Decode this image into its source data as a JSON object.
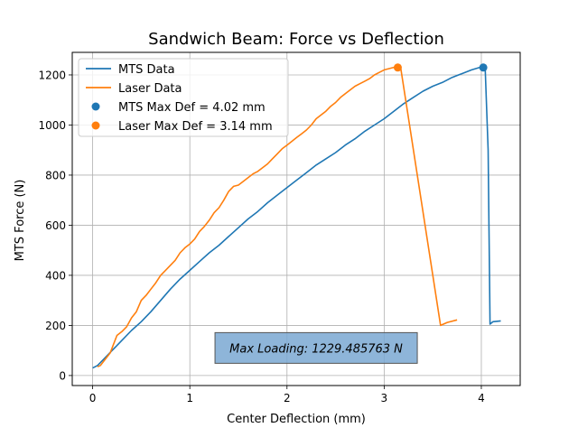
{
  "chart_data": {
    "type": "line",
    "title": "Sandwich Beam: Force vs Deflection",
    "xlabel": "Center Deflection (mm)",
    "ylabel": "MTS Force (N)",
    "xlim": [
      -0.21,
      4.4
    ],
    "ylim": [
      -40,
      1290
    ],
    "xticks": [
      0,
      1,
      2,
      3,
      4
    ],
    "xtick_labels": [
      "0",
      "1",
      "2",
      "3",
      "4"
    ],
    "yticks": [
      0,
      200,
      400,
      600,
      800,
      1000,
      1200
    ],
    "ytick_labels": [
      "0",
      "200",
      "400",
      "600",
      "800",
      "1000",
      "1200"
    ],
    "grid": true,
    "legend_position": "top-left",
    "series": [
      {
        "name": "MTS Data",
        "color": "#1f77b4",
        "x": [
          0.0,
          0.05,
          0.1,
          0.2,
          0.3,
          0.4,
          0.5,
          0.6,
          0.7,
          0.8,
          0.9,
          1.0,
          1.1,
          1.2,
          1.3,
          1.4,
          1.5,
          1.6,
          1.7,
          1.8,
          1.9,
          2.0,
          2.1,
          2.2,
          2.3,
          2.4,
          2.5,
          2.6,
          2.7,
          2.8,
          2.9,
          3.0,
          3.1,
          3.2,
          3.3,
          3.4,
          3.5,
          3.6,
          3.7,
          3.8,
          3.9,
          4.0,
          4.02,
          4.04,
          4.07,
          4.09,
          4.12,
          4.2
        ],
        "y": [
          30,
          40,
          60,
          100,
          140,
          180,
          215,
          255,
          300,
          345,
          385,
          420,
          455,
          490,
          520,
          555,
          590,
          625,
          655,
          690,
          720,
          750,
          780,
          810,
          840,
          865,
          890,
          920,
          945,
          975,
          1000,
          1025,
          1055,
          1085,
          1110,
          1135,
          1155,
          1170,
          1190,
          1205,
          1220,
          1232,
          1229,
          1220,
          900,
          205,
          215,
          218
        ]
      },
      {
        "name": "Laser Data",
        "color": "#ff7f0e",
        "x": [
          0.05,
          0.08,
          0.12,
          0.18,
          0.25,
          0.3,
          0.35,
          0.4,
          0.45,
          0.5,
          0.55,
          0.6,
          0.65,
          0.7,
          0.75,
          0.8,
          0.85,
          0.9,
          0.95,
          1.0,
          1.05,
          1.1,
          1.15,
          1.2,
          1.25,
          1.3,
          1.35,
          1.4,
          1.45,
          1.5,
          1.55,
          1.6,
          1.65,
          1.7,
          1.75,
          1.8,
          1.85,
          1.9,
          1.95,
          2.0,
          2.05,
          2.1,
          2.15,
          2.2,
          2.25,
          2.3,
          2.35,
          2.4,
          2.45,
          2.5,
          2.55,
          2.6,
          2.65,
          2.7,
          2.75,
          2.8,
          2.85,
          2.9,
          2.95,
          3.0,
          3.05,
          3.1,
          3.14,
          3.17,
          3.58,
          3.65,
          3.75
        ],
        "y": [
          35,
          40,
          60,
          90,
          160,
          175,
          195,
          230,
          255,
          300,
          320,
          345,
          370,
          400,
          420,
          440,
          460,
          490,
          510,
          525,
          545,
          575,
          595,
          620,
          650,
          670,
          700,
          735,
          755,
          760,
          775,
          790,
          805,
          815,
          830,
          845,
          865,
          885,
          905,
          920,
          935,
          950,
          965,
          980,
          1000,
          1025,
          1040,
          1055,
          1075,
          1090,
          1110,
          1125,
          1140,
          1155,
          1165,
          1175,
          1185,
          1200,
          1210,
          1220,
          1225,
          1230,
          1230,
          1228,
          200,
          212,
          222
        ]
      }
    ],
    "markers": [
      {
        "label": "MTS Max Def = 4.02 mm",
        "x": 4.02,
        "y": 1229.485763,
        "color": "#1f77b4"
      },
      {
        "label": "Laser Max Def = 3.14 mm",
        "x": 3.14,
        "y": 1229.485763,
        "color": "#ff7f0e"
      }
    ],
    "annotation": {
      "text": "Max Loading: 1229.485763 N",
      "x": 2.3,
      "y": 110,
      "box_color": "#7aa8d2"
    }
  }
}
